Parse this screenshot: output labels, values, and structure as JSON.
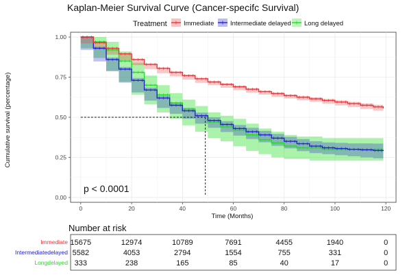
{
  "chart_data": {
    "type": "line",
    "title": "Kaplan-Meier Survival Curve (Cancer-specifc Survival)",
    "legend_title": "Treatment",
    "legend_position": "top",
    "xlabel": "Time (Months)",
    "ylabel": "Cumulative survival (percentage)",
    "xlim": [
      -4,
      124
    ],
    "ylim": [
      -0.03,
      1.03
    ],
    "x_ticks": [
      0,
      20,
      40,
      60,
      80,
      100,
      120
    ],
    "y_ticks": [
      0.0,
      0.25,
      0.5,
      0.75,
      1.0
    ],
    "x_tick_labels": [
      "0",
      "20",
      "40",
      "60",
      "80",
      "100",
      "120"
    ],
    "y_tick_labels": [
      "0.00",
      "0.25",
      "0.50",
      "0.75",
      "1.00"
    ],
    "grid": true,
    "annotation": "p < 0.0001",
    "median_reference": {
      "x": 49,
      "y": 0.5
    },
    "series": [
      {
        "name": "Immediate",
        "color": "#e8353a",
        "x": [
          0,
          5,
          10,
          15,
          20,
          25,
          30,
          35,
          40,
          45,
          50,
          55,
          60,
          65,
          70,
          75,
          80,
          85,
          90,
          95,
          100,
          105,
          110,
          115,
          119
        ],
        "y": [
          1.0,
          0.965,
          0.93,
          0.895,
          0.86,
          0.83,
          0.805,
          0.78,
          0.76,
          0.74,
          0.72,
          0.705,
          0.69,
          0.675,
          0.66,
          0.648,
          0.635,
          0.625,
          0.615,
          0.605,
          0.595,
          0.585,
          0.575,
          0.565,
          0.555
        ],
        "ci_lower": [
          0.995,
          0.96,
          0.925,
          0.89,
          0.855,
          0.825,
          0.8,
          0.775,
          0.755,
          0.735,
          0.715,
          0.7,
          0.684,
          0.669,
          0.654,
          0.641,
          0.628,
          0.617,
          0.606,
          0.596,
          0.585,
          0.574,
          0.563,
          0.552,
          0.541
        ],
        "ci_upper": [
          1.0,
          0.97,
          0.935,
          0.9,
          0.865,
          0.835,
          0.81,
          0.785,
          0.765,
          0.745,
          0.725,
          0.71,
          0.696,
          0.681,
          0.666,
          0.655,
          0.642,
          0.633,
          0.624,
          0.614,
          0.605,
          0.596,
          0.587,
          0.578,
          0.569
        ]
      },
      {
        "name": "Intermediate delayed",
        "color": "#2222cc",
        "x": [
          0,
          5,
          10,
          15,
          20,
          25,
          30,
          35,
          40,
          45,
          50,
          55,
          60,
          65,
          70,
          75,
          80,
          85,
          90,
          95,
          100,
          105,
          110,
          115,
          119
        ],
        "y": [
          1.0,
          0.93,
          0.86,
          0.8,
          0.73,
          0.67,
          0.62,
          0.575,
          0.54,
          0.51,
          0.48,
          0.455,
          0.43,
          0.41,
          0.39,
          0.37,
          0.35,
          0.335,
          0.32,
          0.31,
          0.305,
          0.3,
          0.297,
          0.293,
          0.29
        ],
        "ci_lower": [
          0.99,
          0.92,
          0.848,
          0.787,
          0.716,
          0.655,
          0.604,
          0.558,
          0.522,
          0.491,
          0.46,
          0.434,
          0.408,
          0.386,
          0.365,
          0.344,
          0.322,
          0.306,
          0.289,
          0.277,
          0.27,
          0.263,
          0.257,
          0.25,
          0.245
        ],
        "ci_upper": [
          1.0,
          0.94,
          0.872,
          0.813,
          0.744,
          0.685,
          0.636,
          0.592,
          0.558,
          0.529,
          0.5,
          0.476,
          0.452,
          0.434,
          0.415,
          0.396,
          0.378,
          0.364,
          0.351,
          0.343,
          0.34,
          0.337,
          0.337,
          0.336,
          0.335
        ]
      },
      {
        "name": "Long delayed",
        "color": "#22dd22",
        "x": [
          0,
          5,
          10,
          15,
          20,
          25,
          30,
          35,
          40,
          45,
          50,
          55,
          60,
          65,
          70,
          75,
          80,
          85,
          90,
          95,
          100,
          105,
          110,
          115,
          119
        ],
        "y": [
          1.0,
          0.97,
          0.92,
          0.85,
          0.78,
          0.7,
          0.64,
          0.59,
          0.55,
          0.51,
          0.47,
          0.44,
          0.42,
          0.39,
          0.36,
          0.34,
          0.32,
          0.31,
          0.31,
          0.3,
          0.3,
          0.3,
          0.3,
          0.3,
          0.3
        ],
        "ci_lower": [
          0.98,
          0.93,
          0.87,
          0.79,
          0.72,
          0.64,
          0.58,
          0.53,
          0.49,
          0.45,
          0.41,
          0.37,
          0.35,
          0.32,
          0.29,
          0.27,
          0.25,
          0.24,
          0.24,
          0.23,
          0.23,
          0.23,
          0.23,
          0.23,
          0.23
        ],
        "ci_upper": [
          1.0,
          1.0,
          0.97,
          0.91,
          0.84,
          0.76,
          0.7,
          0.65,
          0.61,
          0.57,
          0.53,
          0.51,
          0.49,
          0.46,
          0.43,
          0.41,
          0.39,
          0.38,
          0.38,
          0.37,
          0.37,
          0.37,
          0.37,
          0.37,
          0.37
        ]
      }
    ]
  },
  "risk_table": {
    "title": "Number at risk",
    "times": [
      0,
      20,
      40,
      60,
      80,
      100,
      120
    ],
    "rows": [
      {
        "label": "Immediate",
        "color": "#e8353a",
        "values": [
          "15675",
          "12974",
          "10789",
          "7691",
          "4455",
          "1940",
          "0"
        ]
      },
      {
        "label": "Intermediatedelayed",
        "color": "#2222cc",
        "values": [
          "5582",
          "4053",
          "2794",
          "1554",
          "755",
          "331",
          "0"
        ]
      },
      {
        "label": "Longdelayed",
        "color": "#22dd22",
        "values": [
          "333",
          "238",
          "165",
          "85",
          "40",
          "17",
          "0"
        ]
      }
    ]
  }
}
